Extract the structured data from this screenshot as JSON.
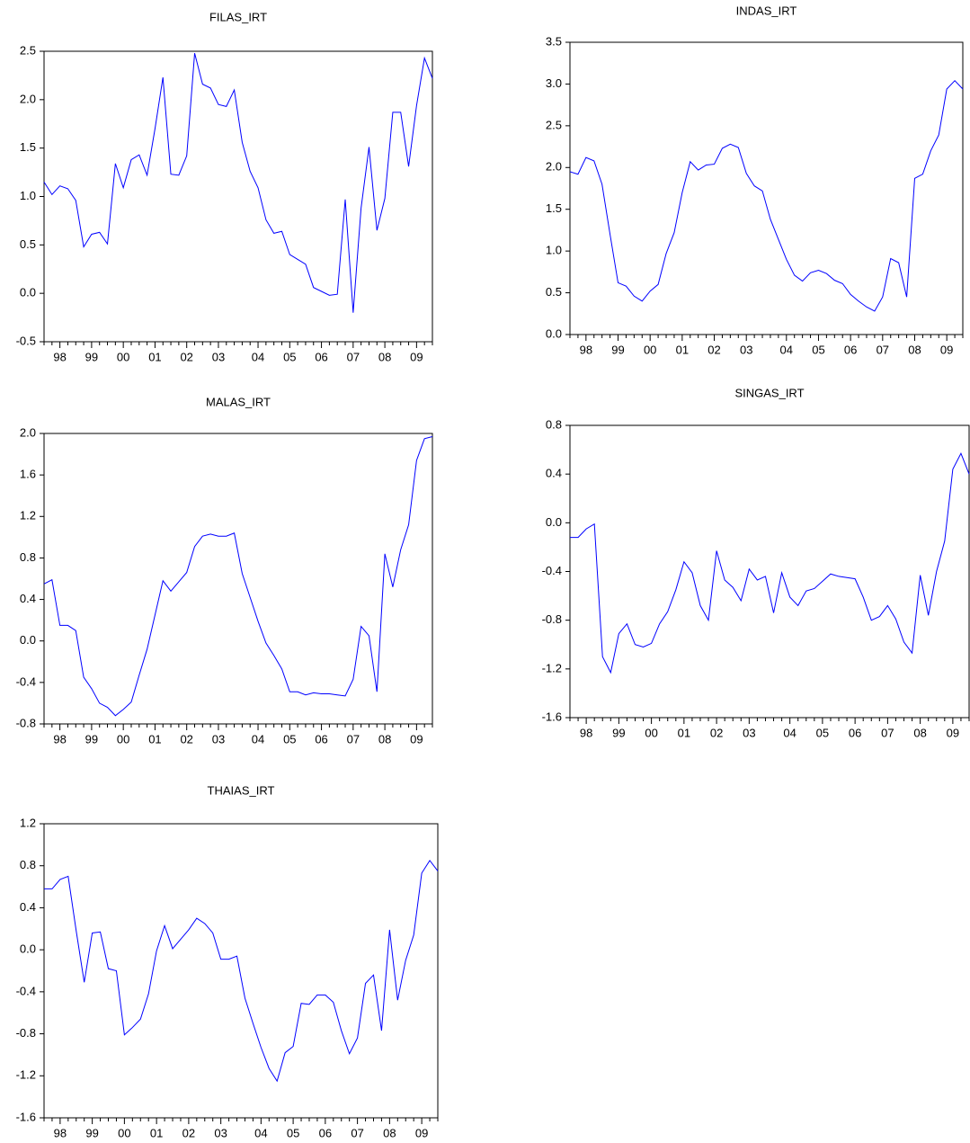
{
  "chart_data": [
    {
      "type": "line",
      "title": "FILAS_IRT",
      "color": "#0000ff",
      "categories": [
        null,
        null,
        "98",
        null,
        null,
        null,
        "99",
        null,
        null,
        null,
        "00",
        null,
        null,
        null,
        "01",
        null,
        null,
        null,
        "02",
        null,
        null,
        null,
        "03",
        null,
        null,
        null,
        null,
        "04",
        null,
        null,
        null,
        "05",
        null,
        null,
        null,
        "06",
        null,
        null,
        null,
        "07",
        null,
        null,
        null,
        "08",
        null,
        null,
        null,
        "09",
        null,
        null
      ],
      "values": [
        1.15,
        1.02,
        1.11,
        1.08,
        0.96,
        0.48,
        0.61,
        0.63,
        0.51,
        1.34,
        1.09,
        1.38,
        1.43,
        1.22,
        1.7,
        2.23,
        1.23,
        1.22,
        1.42,
        2.48,
        2.16,
        2.12,
        1.95,
        1.93,
        2.1,
        1.56,
        1.26,
        1.09,
        0.76,
        0.62,
        0.64,
        0.4,
        0.35,
        0.3,
        0.06,
        0.02,
        -0.02,
        -0.01,
        0.97,
        -0.2,
        0.88,
        1.51,
        0.65,
        0.98,
        1.87,
        1.87,
        1.31,
        1.94,
        2.43,
        2.22
      ],
      "ylim": [
        -0.5,
        2.5
      ],
      "yticks": [
        -0.5,
        {
          "value": 0,
          "label": "0.0"
        },
        0.5,
        {
          "value": 1,
          "label": "1.0"
        },
        1.5,
        {
          "value": 2,
          "label": "2.0"
        },
        2.5
      ]
    },
    {
      "type": "line",
      "title": "INDAS_IRT",
      "color": "#0000ff",
      "categories": [
        null,
        null,
        "98",
        null,
        null,
        null,
        "99",
        null,
        null,
        null,
        "00",
        null,
        null,
        null,
        "01",
        null,
        null,
        null,
        "02",
        null,
        null,
        null,
        "03",
        null,
        null,
        null,
        null,
        "04",
        null,
        null,
        null,
        "05",
        null,
        null,
        null,
        "06",
        null,
        null,
        null,
        "07",
        null,
        null,
        null,
        "08",
        null,
        null,
        null,
        "09",
        null,
        null
      ],
      "values": [
        1.95,
        1.92,
        2.12,
        2.08,
        1.8,
        1.2,
        0.62,
        0.58,
        0.46,
        0.4,
        0.52,
        0.6,
        0.97,
        1.22,
        1.7,
        2.07,
        1.97,
        2.03,
        2.04,
        2.23,
        2.28,
        2.24,
        1.93,
        1.78,
        1.72,
        1.38,
        1.14,
        0.9,
        0.71,
        0.64,
        0.74,
        0.77,
        0.73,
        0.65,
        0.61,
        0.48,
        0.4,
        0.33,
        0.28,
        0.45,
        0.91,
        0.86,
        0.45,
        1.87,
        1.92,
        2.2,
        2.39,
        2.94,
        3.04,
        2.94
      ],
      "ylim": [
        0,
        3.5
      ],
      "yticks": [
        {
          "value": 0,
          "label": "0.0"
        },
        0.5,
        {
          "value": 1,
          "label": "1.0"
        },
        1.5,
        {
          "value": 2,
          "label": "2.0"
        },
        2.5,
        {
          "value": 3,
          "label": "3.0"
        },
        3.5
      ]
    },
    {
      "type": "line",
      "title": "MALAS_IRT",
      "color": "#0000ff",
      "categories": [
        null,
        null,
        "98",
        null,
        null,
        null,
        "99",
        null,
        null,
        null,
        "00",
        null,
        null,
        null,
        "01",
        null,
        null,
        null,
        "02",
        null,
        null,
        null,
        "03",
        null,
        null,
        null,
        null,
        "04",
        null,
        null,
        null,
        "05",
        null,
        null,
        null,
        "06",
        null,
        null,
        null,
        "07",
        null,
        null,
        null,
        "08",
        null,
        null,
        null,
        "09",
        null,
        null
      ],
      "values": [
        0.55,
        0.59,
        0.15,
        0.15,
        0.1,
        -0.35,
        -0.46,
        -0.6,
        -0.64,
        -0.72,
        -0.66,
        -0.59,
        -0.33,
        -0.08,
        0.25,
        0.58,
        0.48,
        0.57,
        0.66,
        0.91,
        1.01,
        1.03,
        1.01,
        1.01,
        1.04,
        0.65,
        0.42,
        0.19,
        -0.02,
        -0.14,
        -0.27,
        -0.49,
        -0.49,
        -0.52,
        -0.5,
        -0.51,
        -0.51,
        -0.52,
        -0.53,
        -0.37,
        0.14,
        0.05,
        -0.49,
        0.84,
        0.52,
        0.88,
        1.12,
        1.74,
        1.95,
        1.97
      ],
      "ylim": [
        -0.8,
        2.0
      ],
      "yticks": [
        -0.8,
        -0.4,
        {
          "value": 0,
          "label": "0.0"
        },
        0.4,
        0.8,
        1.2,
        1.6,
        {
          "value": 2,
          "label": "2.0"
        }
      ]
    },
    {
      "type": "line",
      "title": "SINGAS_IRT",
      "color": "#0000ff",
      "categories": [
        null,
        null,
        "98",
        null,
        null,
        null,
        "99",
        null,
        null,
        null,
        "00",
        null,
        null,
        null,
        "01",
        null,
        null,
        null,
        "02",
        null,
        null,
        null,
        "03",
        null,
        null,
        null,
        null,
        "04",
        null,
        null,
        null,
        "05",
        null,
        null,
        null,
        "06",
        null,
        null,
        null,
        "07",
        null,
        null,
        null,
        "08",
        null,
        null,
        null,
        "09",
        null,
        null
      ],
      "values": [
        -0.12,
        -0.12,
        -0.05,
        -0.01,
        -1.1,
        -1.23,
        -0.91,
        -0.83,
        -1.0,
        -1.02,
        -0.99,
        -0.83,
        -0.73,
        -0.55,
        -0.32,
        -0.41,
        -0.68,
        -0.8,
        -0.23,
        -0.47,
        -0.53,
        -0.64,
        -0.38,
        -0.47,
        -0.44,
        -0.74,
        -0.41,
        -0.61,
        -0.68,
        -0.56,
        -0.54,
        -0.48,
        -0.42,
        -0.44,
        -0.45,
        -0.46,
        -0.61,
        -0.8,
        -0.77,
        -0.68,
        -0.79,
        -0.98,
        -1.07,
        -0.43,
        -0.76,
        -0.4,
        -0.15,
        0.44,
        0.57,
        0.4
      ],
      "ylim": [
        -1.6,
        0.8
      ],
      "yticks": [
        -1.6,
        -1.2,
        -0.8,
        -0.4,
        {
          "value": 0,
          "label": "0.0"
        },
        0.4,
        0.8
      ]
    },
    {
      "type": "line",
      "title": "THAIAS_IRT",
      "color": "#0000ff",
      "categories": [
        null,
        null,
        "98",
        null,
        null,
        null,
        "99",
        null,
        null,
        null,
        "00",
        null,
        null,
        null,
        "01",
        null,
        null,
        null,
        "02",
        null,
        null,
        null,
        "03",
        null,
        null,
        null,
        null,
        "04",
        null,
        null,
        null,
        "05",
        null,
        null,
        null,
        "06",
        null,
        null,
        null,
        "07",
        null,
        null,
        null,
        "08",
        null,
        null,
        null,
        "09",
        null,
        null
      ],
      "values": [
        0.58,
        0.58,
        0.67,
        0.7,
        0.18,
        -0.31,
        0.16,
        0.17,
        -0.18,
        -0.2,
        -0.81,
        -0.74,
        -0.66,
        -0.42,
        -0.01,
        0.23,
        0.01,
        0.1,
        0.19,
        0.3,
        0.25,
        0.16,
        -0.09,
        -0.09,
        -0.06,
        -0.46,
        -0.7,
        -0.93,
        -1.13,
        -1.25,
        -0.98,
        -0.92,
        -0.51,
        -0.52,
        -0.43,
        -0.43,
        -0.5,
        -0.77,
        -0.99,
        -0.84,
        -0.32,
        -0.24,
        -0.77,
        0.19,
        -0.48,
        -0.1,
        0.14,
        0.73,
        0.85,
        0.75
      ],
      "ylim": [
        -1.6,
        1.2
      ],
      "yticks": [
        -1.6,
        -1.2,
        -0.8,
        -0.4,
        {
          "value": 0,
          "label": "0.0"
        },
        0.4,
        0.8,
        1.2
      ]
    }
  ]
}
